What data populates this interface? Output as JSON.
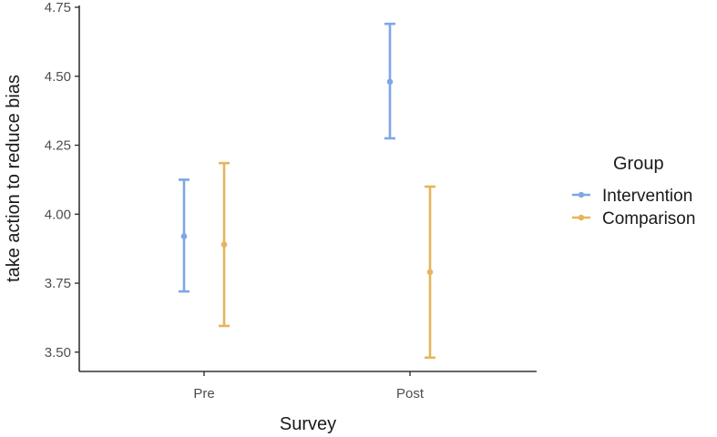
{
  "chart_data": {
    "type": "errorbar",
    "categories": [
      "Pre",
      "Post"
    ],
    "xlabel": "Survey",
    "ylabel": "take action to reduce bias",
    "ylim": [
      3.43,
      4.75
    ],
    "yticks": [
      3.5,
      3.75,
      4.0,
      4.25,
      4.5,
      4.75
    ],
    "ytick_labels": [
      "3.50",
      "3.75",
      "4.00",
      "4.25",
      "4.50",
      "4.75"
    ],
    "grid": false,
    "legend": {
      "title": "Group",
      "position": "right"
    },
    "series": [
      {
        "name": "Intervention",
        "color": "#7da7e8",
        "points": [
          {
            "x": "Pre",
            "mean": 3.92,
            "lower": 3.72,
            "upper": 4.125
          },
          {
            "x": "Post",
            "mean": 4.48,
            "lower": 4.275,
            "upper": 4.69
          }
        ]
      },
      {
        "name": "Comparison",
        "color": "#e6b55a",
        "points": [
          {
            "x": "Pre",
            "mean": 3.89,
            "lower": 3.595,
            "upper": 4.185
          },
          {
            "x": "Post",
            "mean": 3.79,
            "lower": 3.48,
            "upper": 4.1
          }
        ]
      }
    ]
  }
}
